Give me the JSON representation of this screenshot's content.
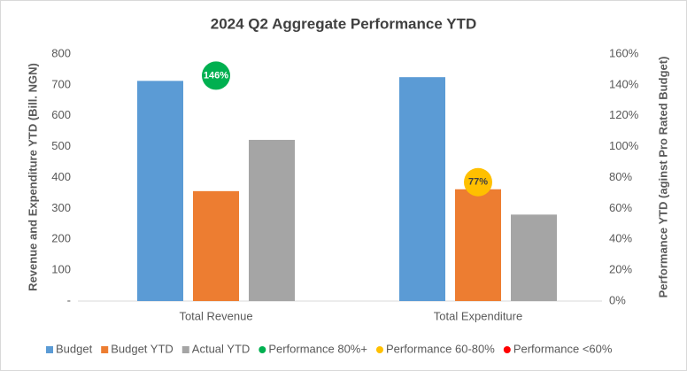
{
  "chart_data": {
    "type": "bar",
    "title": "2024 Q2 Aggregate Performance YTD",
    "y_label": "Revenue and Expenditure YTD (Bill. NGN)",
    "y2_label": "Performance YTD (aginst Pro Rated Budget)",
    "categories": [
      "Total Revenue",
      "Total Expenditure"
    ],
    "series": [
      {
        "name": "Budget",
        "color": "#5b9bd5",
        "values": [
          713,
          725
        ]
      },
      {
        "name": "Budget YTD",
        "color": "#ed7d31",
        "values": [
          356,
          362
        ]
      },
      {
        "name": "Actual YTD",
        "color": "#a5a5a5",
        "values": [
          522,
          280
        ]
      },
      {
        "name": "Performance 80%+",
        "color": "#00b050",
        "axis": "y2",
        "marker": "circle",
        "values": [
          146,
          null
        ],
        "value_labels": [
          "146%",
          null
        ]
      },
      {
        "name": "Performance 60-80%",
        "color": "#ffc000",
        "axis": "y2",
        "marker": "circle",
        "values": [
          null,
          77
        ],
        "value_labels": [
          null,
          "77%"
        ]
      },
      {
        "name": "Performance <60%",
        "color": "#ff0000",
        "axis": "y2",
        "marker": "circle",
        "values": [
          null,
          null
        ],
        "value_labels": [
          null,
          null
        ]
      }
    ],
    "ylim": [
      0,
      800
    ],
    "yticks": [
      {
        "value": 0,
        "label": "-"
      },
      100,
      200,
      300,
      400,
      500,
      600,
      700,
      800
    ],
    "y2lim": [
      0,
      160
    ],
    "y2ticks": [
      {
        "value": 0,
        "label": "0%"
      },
      {
        "value": 20,
        "label": "20%"
      },
      {
        "value": 40,
        "label": "40%"
      },
      {
        "value": 60,
        "label": "60%"
      },
      {
        "value": 80,
        "label": "80%"
      },
      {
        "value": 100,
        "label": "100%"
      },
      {
        "value": 120,
        "label": "120%"
      },
      {
        "value": 140,
        "label": "140%"
      },
      {
        "value": 160,
        "label": "160%"
      }
    ],
    "legend": "bottom"
  }
}
